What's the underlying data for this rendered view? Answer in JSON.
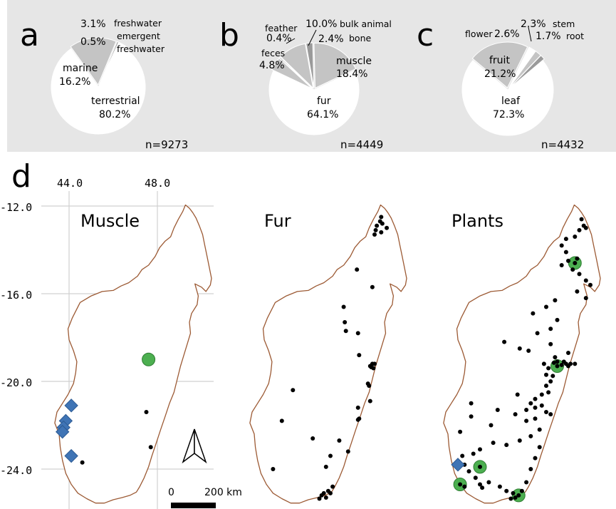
{
  "panel_labels": [
    "a",
    "b",
    "c",
    "d"
  ],
  "pies": [
    {
      "id": "a",
      "n_label": "n=9273",
      "slices": [
        {
          "key": "terrestrial",
          "value": 80.2,
          "label": "terrestrial",
          "pct": "80.2%",
          "color": "#ffffff"
        },
        {
          "key": "marine",
          "value": 16.2,
          "label": "marine",
          "pct": "16.2%",
          "color": "#c4c4c4"
        },
        {
          "key": "emergent-freshwater",
          "value": 0.5,
          "label": "emergent\nfreshwater",
          "pct": "0.5%",
          "color": "#9a9a9a"
        },
        {
          "key": "freshwater",
          "value": 3.1,
          "label": "freshwater",
          "pct": "3.1%",
          "color": "#ffffff"
        }
      ]
    },
    {
      "id": "b",
      "n_label": "n=4449",
      "slices": [
        {
          "key": "fur",
          "value": 64.1,
          "label": "fur",
          "pct": "64.1%",
          "color": "#ffffff"
        },
        {
          "key": "feces",
          "value": 4.8,
          "label": "feces",
          "pct": "4.8%",
          "color": "#c4c4c4"
        },
        {
          "key": "feather",
          "value": 0.4,
          "label": "feather",
          "pct": "0.4%",
          "color": "#9a9a9a"
        },
        {
          "key": "bulk-animal",
          "value": 10.0,
          "label": "bulk animal",
          "pct": "10.0%",
          "color": "#c4c4c4"
        },
        {
          "key": "bone",
          "value": 2.4,
          "label": "bone",
          "pct": "2.4%",
          "color": "#9a9a9a"
        },
        {
          "key": "muscle",
          "value": 18.4,
          "label": "muscle",
          "pct": "18.4%",
          "color": "#c4c4c4"
        }
      ]
    },
    {
      "id": "c",
      "n_label": "n=4432",
      "slices": [
        {
          "key": "leaf",
          "value": 72.3,
          "label": "leaf",
          "pct": "72.3%",
          "color": "#ffffff"
        },
        {
          "key": "fruit",
          "value": 21.2,
          "label": "fruit",
          "pct": "21.2%",
          "color": "#c4c4c4"
        },
        {
          "key": "flower",
          "value": 2.6,
          "label": "flower",
          "pct": "2.6%",
          "color": "#ffffff"
        },
        {
          "key": "stem",
          "value": 2.3,
          "label": "stem",
          "pct": "2.3%",
          "color": "#c4c4c4"
        },
        {
          "key": "root",
          "value": 1.7,
          "label": "root",
          "pct": "1.7%",
          "color": "#9a9a9a"
        }
      ]
    }
  ],
  "maps": {
    "x_ticks": [
      44.0,
      48.0
    ],
    "x_tick_labels": [
      "44.0",
      "48.0"
    ],
    "y_ticks": [
      -12.0,
      -16.0,
      -20.0,
      -24.0
    ],
    "y_tick_labels": [
      "-12.0",
      "-16.0",
      "-20.0",
      "-24.0"
    ],
    "lon_range": [
      43.0,
      50.6
    ],
    "lat_range": [
      -25.7,
      -11.9
    ],
    "scalebar": {
      "start_label": "0",
      "end_label": "200 km",
      "km": 200
    },
    "marker_colors": {
      "points": "#000000",
      "circles": "#4caf50",
      "diamonds": "#3f74b5"
    },
    "panels": [
      {
        "title": "Muscle",
        "points": [
          [
            47.5,
            -21.4
          ],
          [
            47.7,
            -23.0
          ],
          [
            44.6,
            -23.7
          ]
        ],
        "circles": [
          [
            47.6,
            -19.0
          ]
        ],
        "diamonds": [
          [
            44.1,
            -21.1
          ],
          [
            43.85,
            -21.8
          ],
          [
            43.75,
            -22.1
          ],
          [
            43.7,
            -22.3
          ],
          [
            44.1,
            -23.4
          ]
        ]
      },
      {
        "title": "Fur",
        "points": [
          [
            49.3,
            -12.5
          ],
          [
            49.25,
            -12.7
          ],
          [
            49.35,
            -12.8
          ],
          [
            49.1,
            -12.9
          ],
          [
            49.05,
            -13.1
          ],
          [
            49.0,
            -13.3
          ],
          [
            49.3,
            -13.2
          ],
          [
            49.55,
            -13.0
          ],
          [
            48.2,
            -14.9
          ],
          [
            48.9,
            -15.7
          ],
          [
            47.6,
            -16.6
          ],
          [
            47.65,
            -17.3
          ],
          [
            47.7,
            -17.7
          ],
          [
            48.25,
            -17.8
          ],
          [
            48.3,
            -18.8
          ],
          [
            48.9,
            -19.2
          ],
          [
            48.85,
            -19.35
          ],
          [
            48.95,
            -19.4
          ],
          [
            49.0,
            -19.2
          ],
          [
            48.8,
            -19.3
          ],
          [
            48.7,
            -20.1
          ],
          [
            48.75,
            -20.2
          ],
          [
            45.3,
            -20.4
          ],
          [
            48.8,
            -20.9
          ],
          [
            48.25,
            -21.2
          ],
          [
            48.3,
            -21.7
          ],
          [
            48.25,
            -21.75
          ],
          [
            44.8,
            -21.8
          ],
          [
            46.2,
            -22.6
          ],
          [
            47.4,
            -22.7
          ],
          [
            47.8,
            -23.2
          ],
          [
            47.0,
            -23.4
          ],
          [
            46.8,
            -23.9
          ],
          [
            44.4,
            -24.0
          ],
          [
            46.9,
            -25.0
          ],
          [
            47.0,
            -25.1
          ],
          [
            46.6,
            -25.2
          ],
          [
            46.7,
            -25.1
          ],
          [
            46.8,
            -25.3
          ],
          [
            46.5,
            -25.35
          ],
          [
            47.1,
            -24.8
          ]
        ],
        "circles": [],
        "diamonds": []
      },
      {
        "title": "Plants",
        "points": [
          [
            49.6,
            -12.6
          ],
          [
            49.7,
            -12.9
          ],
          [
            49.5,
            -13.1
          ],
          [
            49.3,
            -13.4
          ],
          [
            49.8,
            -13.0
          ],
          [
            48.9,
            -13.5
          ],
          [
            48.7,
            -13.8
          ],
          [
            48.9,
            -14.1
          ],
          [
            49.0,
            -14.5
          ],
          [
            48.7,
            -14.7
          ],
          [
            49.2,
            -14.9
          ],
          [
            49.4,
            -14.4
          ],
          [
            49.5,
            -15.1
          ],
          [
            49.8,
            -15.4
          ],
          [
            50.0,
            -15.6
          ],
          [
            49.8,
            -16.2
          ],
          [
            48.4,
            -16.3
          ],
          [
            48.0,
            -16.6
          ],
          [
            47.4,
            -16.9
          ],
          [
            48.2,
            -17.6
          ],
          [
            47.6,
            -17.8
          ],
          [
            48.5,
            -17.2
          ],
          [
            46.1,
            -18.2
          ],
          [
            46.8,
            -18.5
          ],
          [
            47.2,
            -18.6
          ],
          [
            48.2,
            -18.3
          ],
          [
            48.4,
            -18.9
          ],
          [
            49.0,
            -18.7
          ],
          [
            48.8,
            -19.1
          ],
          [
            48.9,
            -19.2
          ],
          [
            49.1,
            -19.2
          ],
          [
            49.3,
            -19.2
          ],
          [
            49.0,
            -19.3
          ],
          [
            48.7,
            -19.25
          ],
          [
            48.5,
            -19.1
          ],
          [
            48.35,
            -19.15
          ],
          [
            47.9,
            -19.2
          ],
          [
            48.1,
            -19.4
          ],
          [
            48.0,
            -19.7
          ],
          [
            48.3,
            -19.75
          ],
          [
            48.2,
            -20.0
          ],
          [
            48.0,
            -20.2
          ],
          [
            48.1,
            -20.5
          ],
          [
            47.8,
            -20.6
          ],
          [
            47.5,
            -20.8
          ],
          [
            47.3,
            -21.0
          ],
          [
            47.5,
            -21.2
          ],
          [
            47.8,
            -21.1
          ],
          [
            47.1,
            -21.3
          ],
          [
            46.6,
            -21.5
          ],
          [
            45.8,
            -21.3
          ],
          [
            44.6,
            -21.0
          ],
          [
            44.6,
            -21.6
          ],
          [
            44.1,
            -22.3
          ],
          [
            45.5,
            -22.0
          ],
          [
            47.1,
            -21.8
          ],
          [
            47.5,
            -21.7
          ],
          [
            47.7,
            -22.2
          ],
          [
            47.3,
            -22.5
          ],
          [
            46.8,
            -22.7
          ],
          [
            46.2,
            -22.9
          ],
          [
            45.6,
            -22.8
          ],
          [
            45.0,
            -23.1
          ],
          [
            44.7,
            -23.3
          ],
          [
            44.2,
            -23.4
          ],
          [
            44.3,
            -23.8
          ],
          [
            44.5,
            -24.1
          ],
          [
            44.8,
            -24.4
          ],
          [
            45.4,
            -24.6
          ],
          [
            45.9,
            -24.8
          ],
          [
            46.2,
            -25.0
          ],
          [
            46.5,
            -25.1
          ],
          [
            46.6,
            -25.3
          ],
          [
            46.4,
            -25.35
          ],
          [
            46.9,
            -25.0
          ],
          [
            47.1,
            -24.6
          ],
          [
            47.3,
            -24.0
          ],
          [
            47.5,
            -23.5
          ],
          [
            47.7,
            -23.0
          ],
          [
            48.2,
            -21.5
          ],
          [
            48.0,
            -21.4
          ],
          [
            46.7,
            -20.6
          ],
          [
            45.0,
            -24.7
          ],
          [
            44.3,
            -24.8
          ],
          [
            45.1,
            -24.85
          ],
          [
            49.4,
            -15.9
          ]
        ],
        "circles": [
          [
            49.3,
            -14.6
          ],
          [
            48.5,
            -19.3
          ],
          [
            45.0,
            -23.9
          ],
          [
            44.1,
            -24.7
          ],
          [
            46.75,
            -25.2
          ]
        ],
        "diamonds": [
          [
            44.0,
            -23.8
          ]
        ]
      }
    ]
  }
}
